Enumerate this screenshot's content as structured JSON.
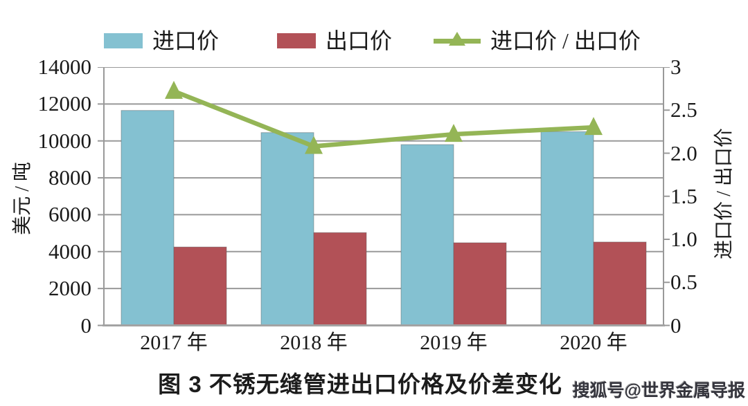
{
  "legend": {
    "items": [
      {
        "label": "进口价",
        "swatch": "bar",
        "color": "#84C1D1"
      },
      {
        "label": "出口价",
        "swatch": "bar",
        "color": "#B25157"
      },
      {
        "label": "进口价 / 出口价",
        "swatch": "line-triangle",
        "color": "#94B556"
      }
    ]
  },
  "axes": {
    "left": {
      "label": "美元 / 吨",
      "ticks": [
        "14000",
        "12000",
        "10000",
        "8000",
        "6000",
        "4000",
        "2000",
        "0"
      ]
    },
    "right": {
      "label": "进口价 / 出口价",
      "ticks": [
        "3",
        "2.5",
        "2.0",
        "1.5",
        "1.0",
        "0.5",
        "0"
      ]
    },
    "x": {
      "labels": [
        "2017 年",
        "2018 年",
        "2019 年",
        "2020 年"
      ]
    }
  },
  "chart_data": {
    "type": "bar",
    "subtype": "grouped bars with overlay line, dual y-axes",
    "title": "图 3 不锈无缝管进出口价格及价差变化",
    "categories": [
      "2017 年",
      "2018 年",
      "2019 年",
      "2020 年"
    ],
    "series": [
      {
        "name": "进口价",
        "type": "bar",
        "axis": "left",
        "color": "#84C1D1",
        "values": [
          11650,
          10450,
          9800,
          10500
        ]
      },
      {
        "name": "出口价",
        "type": "bar",
        "axis": "left",
        "color": "#B25157",
        "values": [
          4250,
          5030,
          4480,
          4520
        ]
      },
      {
        "name": "进口价 / 出口价",
        "type": "line",
        "axis": "right",
        "marker": "triangle",
        "color": "#94B556",
        "values": [
          2.72,
          2.08,
          2.22,
          2.3
        ]
      }
    ],
    "left_ylabel": "美元 / 吨",
    "right_ylabel": "进口价 / 出口价",
    "left_ylim": [
      0,
      14000
    ],
    "right_ylim": [
      0,
      3
    ],
    "left_tick_step": 2000,
    "right_tick_step": 0.5,
    "grid": "horizontal",
    "legend_position": "top"
  },
  "caption": {
    "text": "图 3 不锈无缝管进出口价格及价差变化"
  },
  "watermark": {
    "text": "搜狐号@世界金属导报"
  },
  "colors": {
    "import_bar": "#84C1D1",
    "export_bar": "#B25157",
    "ratio_line": "#94B556",
    "gridline": "#999999",
    "baseline": "#a3a3a3",
    "text": "#1a1a1a"
  }
}
